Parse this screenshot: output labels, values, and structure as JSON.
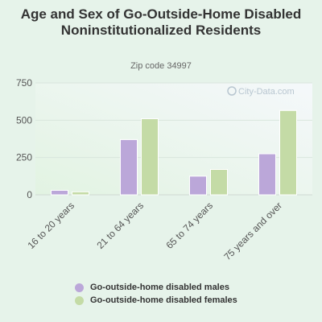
{
  "title": "Age and Sex of Go-Outside-Home Disabled Noninstitutionalized Residents",
  "subtitle": "Zip code 34997",
  "watermark": "City-Data.com",
  "chart_data": {
    "type": "bar",
    "categories": [
      "16 to 20 years",
      "21 to 64 years",
      "65 to 74 years",
      "75 years and over"
    ],
    "series": [
      {
        "name": "Go-outside-home disabled males",
        "color": "#bba7d9",
        "values": [
          30,
          370,
          125,
          275
        ]
      },
      {
        "name": "Go-outside-home disabled females",
        "color": "#c4dba6",
        "values": [
          20,
          510,
          170,
          565
        ]
      }
    ],
    "yticks": [
      0,
      250,
      500,
      750
    ],
    "ylim": [
      0,
      750
    ],
    "grid": true,
    "legend_position": "bottom"
  }
}
